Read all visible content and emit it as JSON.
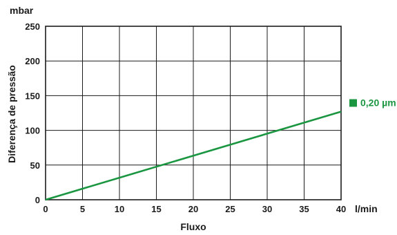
{
  "chart_data": {
    "type": "line",
    "x_unit": "l/min",
    "y_unit": "mbar",
    "xlabel": "Fluxo",
    "ylabel": "Diferença de pressão",
    "xlim": [
      0,
      40
    ],
    "ylim": [
      0,
      250
    ],
    "x_ticks": [
      0,
      5,
      10,
      15,
      20,
      25,
      30,
      35,
      40
    ],
    "y_ticks": [
      0,
      50,
      100,
      150,
      200,
      250
    ],
    "grid": true,
    "legend_placement": "right",
    "series": [
      {
        "name": "0,20 µm",
        "color": "#1a9641",
        "x": [
          0,
          40
        ],
        "y": [
          0,
          127
        ]
      }
    ]
  }
}
